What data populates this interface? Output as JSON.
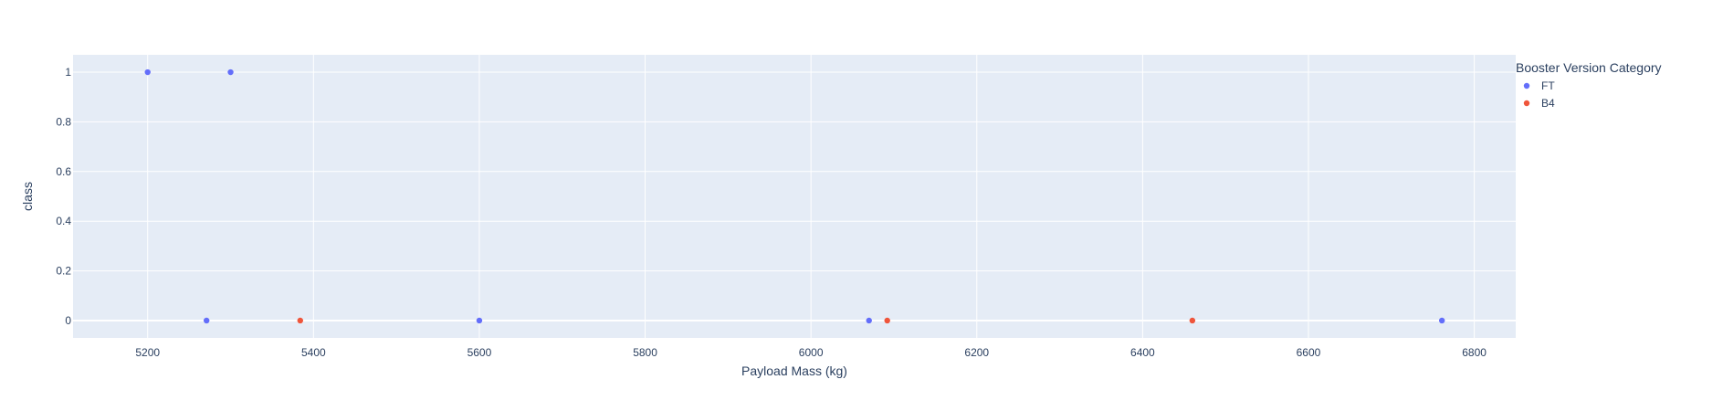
{
  "chart_data": {
    "type": "scatter",
    "title": "",
    "xlabel": "Payload Mass (kg)",
    "ylabel": "class",
    "xlim": [
      5110,
      6850
    ],
    "ylim": [
      -0.07,
      1.07
    ],
    "xticks": [
      5200,
      5400,
      5600,
      5800,
      6000,
      6200,
      6400,
      6600,
      6800
    ],
    "yticks": [
      0,
      0.2,
      0.4,
      0.6,
      0.8,
      1
    ],
    "grid": true,
    "legend_position": "top-right",
    "legend_title": "Booster Version Category",
    "series": [
      {
        "name": "FT",
        "color": "#636efa",
        "points": [
          {
            "x": 5200,
            "y": 1
          },
          {
            "x": 5300,
            "y": 1
          },
          {
            "x": 5271,
            "y": 0
          },
          {
            "x": 5600,
            "y": 0
          },
          {
            "x": 6070,
            "y": 0
          },
          {
            "x": 6761,
            "y": 0
          }
        ]
      },
      {
        "name": "B4",
        "color": "#ef553b",
        "points": [
          {
            "x": 5384,
            "y": 0
          },
          {
            "x": 6092,
            "y": 0
          },
          {
            "x": 6460,
            "y": 0
          }
        ]
      }
    ]
  }
}
